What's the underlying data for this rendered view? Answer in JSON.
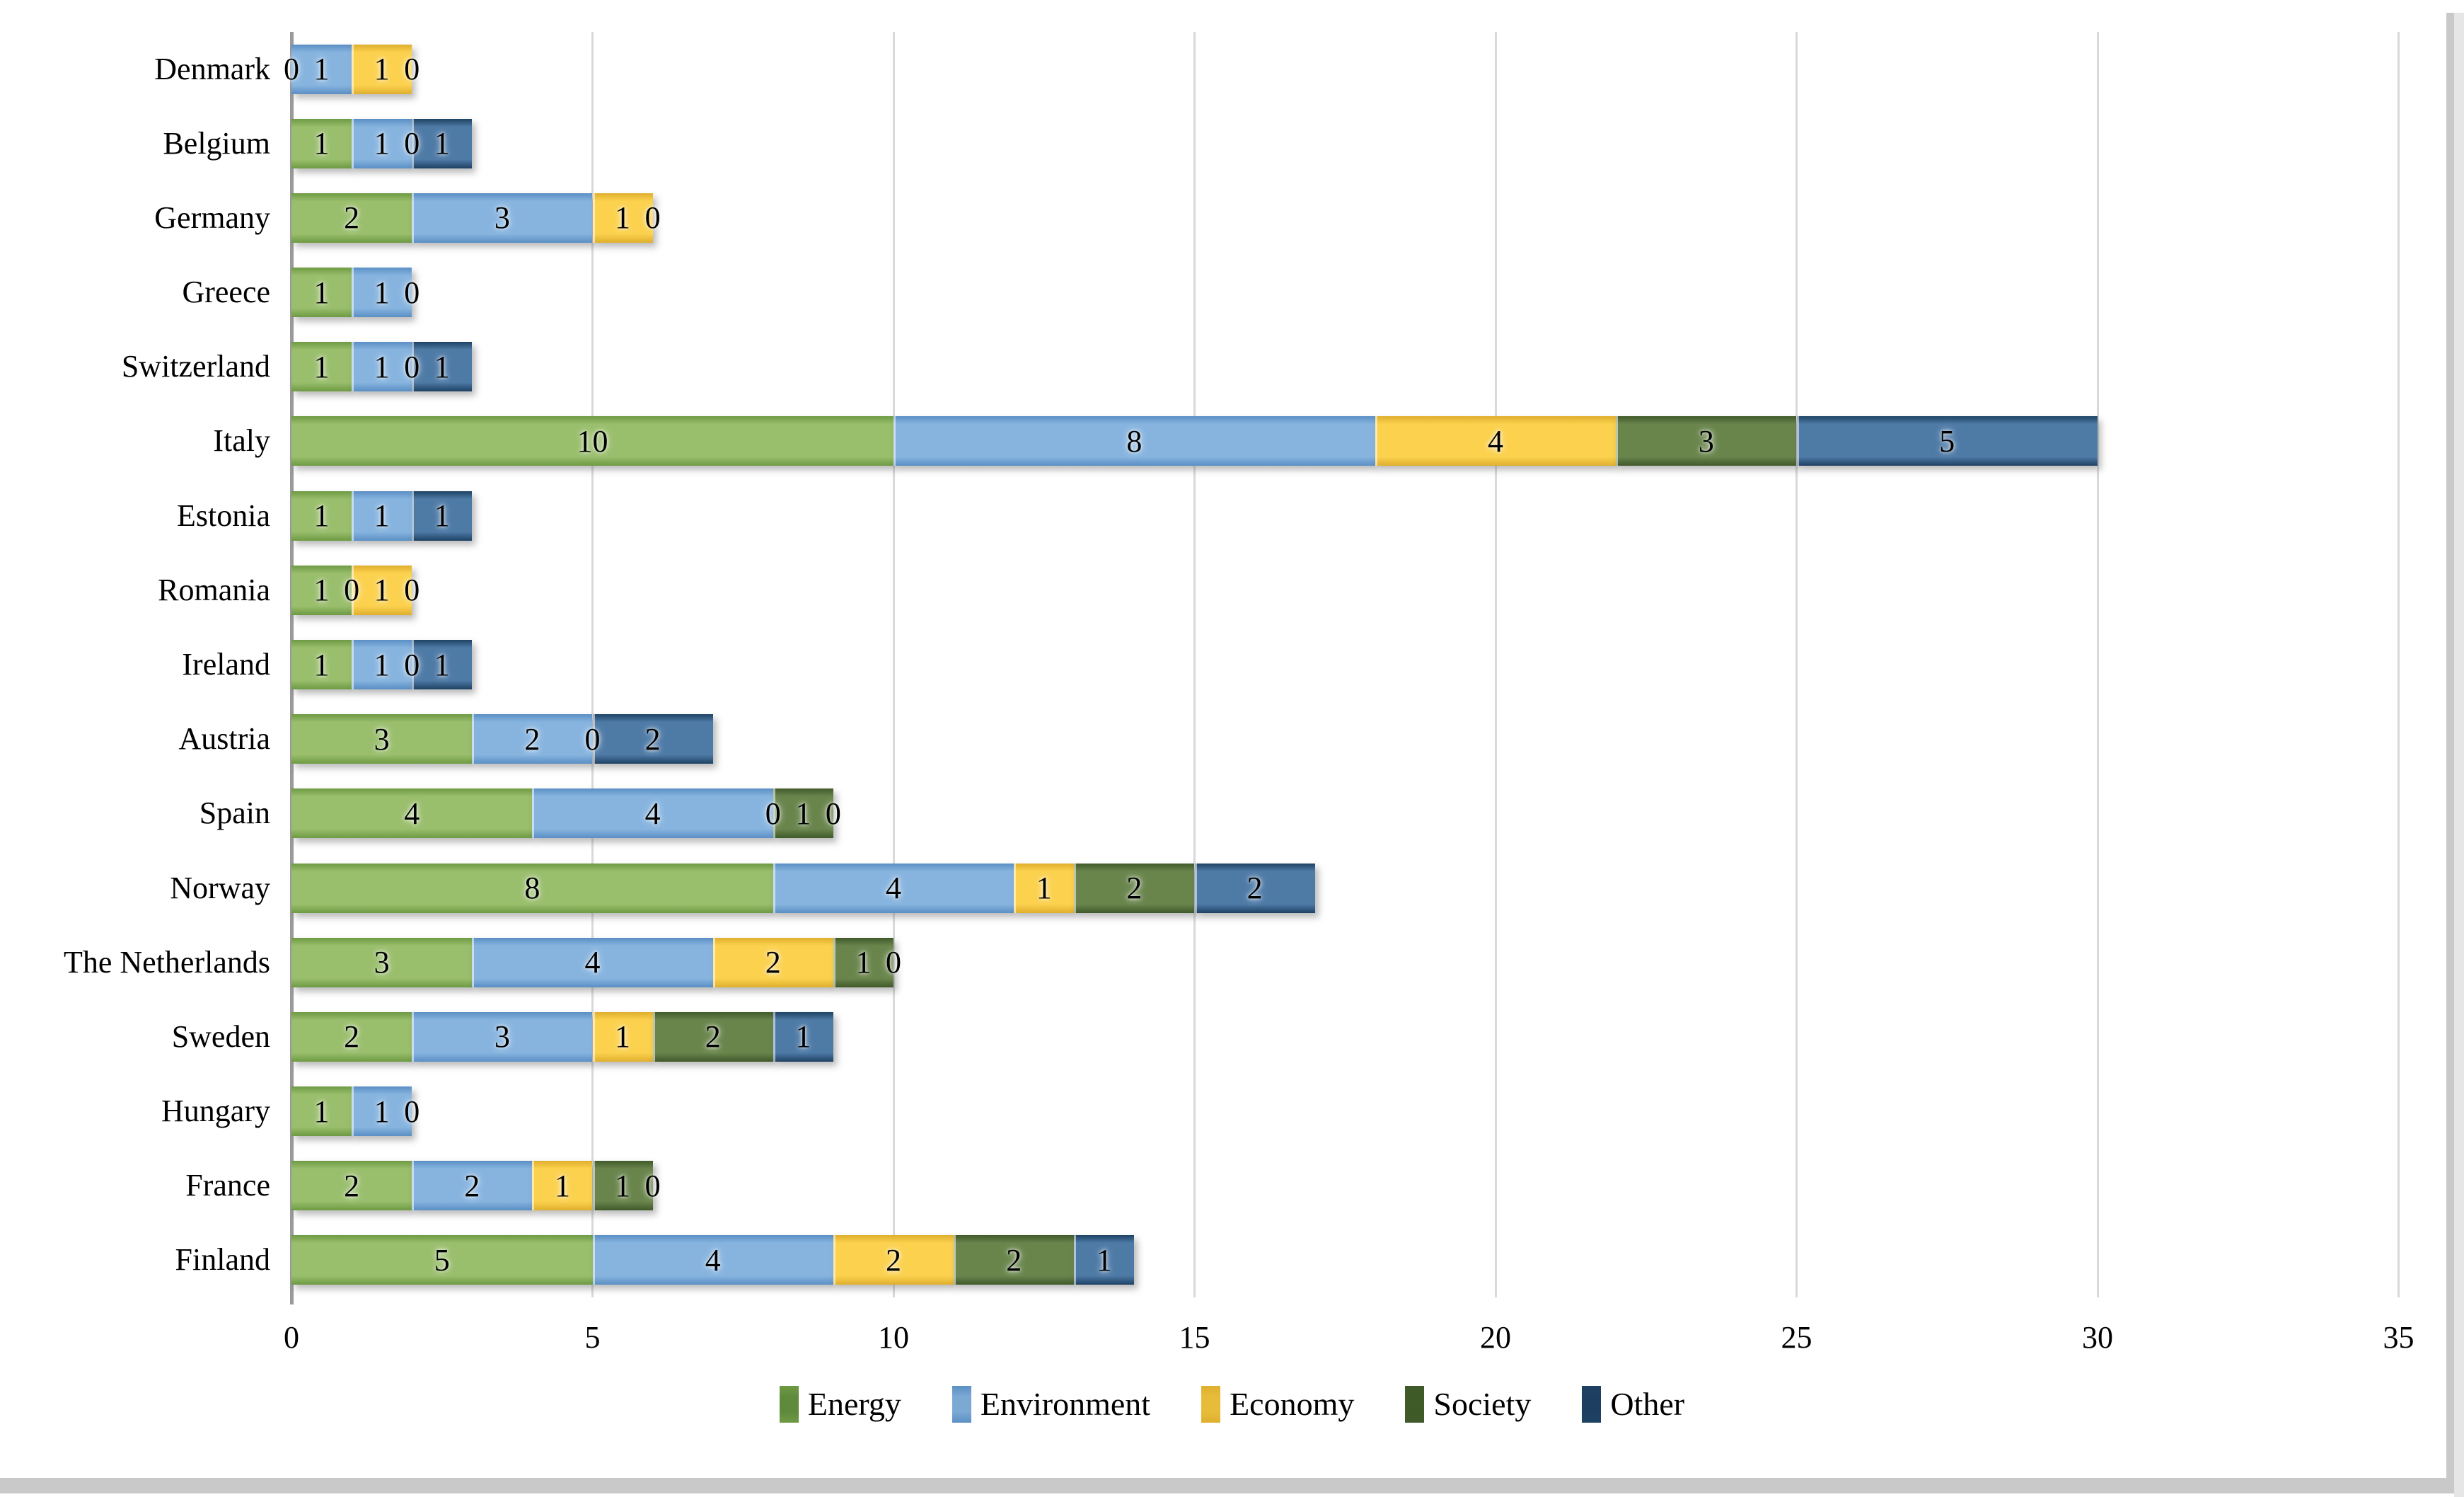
{
  "chart_data": {
    "type": "bar",
    "orientation": "horizontal",
    "stacked": true,
    "title": "",
    "xlabel": "",
    "ylabel": "",
    "xlim": [
      0,
      35
    ],
    "x_ticks": [
      "0",
      "5",
      "10",
      "15",
      "20",
      "25",
      "30",
      "35"
    ],
    "grid": true,
    "legend_position": "bottom-center",
    "categories": [
      "Denmark",
      "Belgium",
      "Germany",
      "Greece",
      "Switzerland",
      "Italy",
      "Estonia",
      "Romania",
      "Ireland",
      "Austria",
      "Spain",
      "Norway",
      "The Netherlands",
      "Sweden",
      "Hungary",
      "France",
      "Finland"
    ],
    "series": [
      {
        "name": "Energy",
        "fill": "#99BE6C",
        "edge": "#6E9A43",
        "legend_color": "#5F8A3C",
        "values": [
          0,
          1,
          2,
          1,
          1,
          10,
          1,
          1,
          1,
          3,
          4,
          8,
          3,
          2,
          1,
          2,
          5
        ]
      },
      {
        "name": "Environment",
        "fill": "#87B4DF",
        "edge": "#5A8FC4",
        "legend_color": "#7CA9D4",
        "values": [
          1,
          1,
          3,
          1,
          1,
          8,
          1,
          0,
          1,
          2,
          4,
          4,
          4,
          3,
          1,
          2,
          4
        ]
      },
      {
        "name": "Economy",
        "fill": "#FBD14E",
        "edge": "#DFAF2E",
        "legend_color": "#E8BC3B",
        "values": [
          1,
          0,
          1,
          0,
          0,
          4,
          0,
          1,
          0,
          0,
          0,
          1,
          2,
          1,
          0,
          1,
          2
        ]
      },
      {
        "name": "Society",
        "fill": "#69854C",
        "edge": "#40592A",
        "legend_color": "#3F5B27",
        "values": [
          0,
          0,
          0,
          0,
          0,
          3,
          0,
          0,
          0,
          0,
          1,
          2,
          1,
          2,
          0,
          1,
          2
        ]
      },
      {
        "name": "Other",
        "fill": "#4E7AA6",
        "edge": "#1E4264",
        "legend_color": "#1D3E60",
        "values": [
          0,
          1,
          0,
          0,
          1,
          5,
          1,
          0,
          1,
          2,
          0,
          2,
          0,
          1,
          0,
          0,
          1
        ]
      }
    ],
    "bar_labels": [
      [
        {
          "t": "0",
          "x": 0
        },
        {
          "t": "1",
          "x": 0.5
        },
        {
          "t": "1",
          "x": 1.5
        },
        {
          "t": "0",
          "x": 2
        }
      ],
      [
        {
          "t": "1",
          "x": 0.5
        },
        {
          "t": "1",
          "x": 1.5
        },
        {
          "t": "0",
          "x": 2
        },
        {
          "t": "1",
          "x": 2.5
        }
      ],
      [
        {
          "t": "2",
          "x": 1
        },
        {
          "t": "3",
          "x": 3.5
        },
        {
          "t": "1",
          "x": 5.5
        },
        {
          "t": "0",
          "x": 6
        }
      ],
      [
        {
          "t": "1",
          "x": 0.5
        },
        {
          "t": "1",
          "x": 1.5
        },
        {
          "t": "0",
          "x": 2
        }
      ],
      [
        {
          "t": "1",
          "x": 0.5
        },
        {
          "t": "1",
          "x": 1.5
        },
        {
          "t": "0",
          "x": 2
        },
        {
          "t": "1",
          "x": 2.5
        }
      ],
      [
        {
          "t": "10",
          "x": 5
        },
        {
          "t": "8",
          "x": 14
        },
        {
          "t": "4",
          "x": 20
        },
        {
          "t": "3",
          "x": 23.5
        },
        {
          "t": "5",
          "x": 27.5
        }
      ],
      [
        {
          "t": "1",
          "x": 0.5
        },
        {
          "t": "1",
          "x": 1.5
        },
        {
          "t": "1",
          "x": 2.5
        }
      ],
      [
        {
          "t": "1",
          "x": 0.5
        },
        {
          "t": "0",
          "x": 1
        },
        {
          "t": "1",
          "x": 1.5
        },
        {
          "t": "0",
          "x": 2
        }
      ],
      [
        {
          "t": "1",
          "x": 0.5
        },
        {
          "t": "1",
          "x": 1.5
        },
        {
          "t": "0",
          "x": 2
        },
        {
          "t": "1",
          "x": 2.5
        }
      ],
      [
        {
          "t": "3",
          "x": 1.5
        },
        {
          "t": "2",
          "x": 4
        },
        {
          "t": "0",
          "x": 5
        },
        {
          "t": "2",
          "x": 6
        }
      ],
      [
        {
          "t": "4",
          "x": 2
        },
        {
          "t": "4",
          "x": 6
        },
        {
          "t": "0",
          "x": 8
        },
        {
          "t": "1",
          "x": 8.5
        },
        {
          "t": "0",
          "x": 9
        }
      ],
      [
        {
          "t": "8",
          "x": 4
        },
        {
          "t": "4",
          "x": 10
        },
        {
          "t": "1",
          "x": 12.5
        },
        {
          "t": "2",
          "x": 14
        },
        {
          "t": "2",
          "x": 16
        }
      ],
      [
        {
          "t": "3",
          "x": 1.5
        },
        {
          "t": "4",
          "x": 5
        },
        {
          "t": "2",
          "x": 8
        },
        {
          "t": "1",
          "x": 9.5
        },
        {
          "t": "0",
          "x": 10
        }
      ],
      [
        {
          "t": "2",
          "x": 1
        },
        {
          "t": "3",
          "x": 3.5
        },
        {
          "t": "1",
          "x": 5.5
        },
        {
          "t": "2",
          "x": 7
        },
        {
          "t": "1",
          "x": 8.5
        }
      ],
      [
        {
          "t": "1",
          "x": 0.5
        },
        {
          "t": "1",
          "x": 1.5
        },
        {
          "t": "0",
          "x": 2
        }
      ],
      [
        {
          "t": "2",
          "x": 1
        },
        {
          "t": "2",
          "x": 3
        },
        {
          "t": "1",
          "x": 4.5
        },
        {
          "t": "1",
          "x": 5.5
        },
        {
          "t": "0",
          "x": 6
        }
      ],
      [
        {
          "t": "5",
          "x": 2.5
        },
        {
          "t": "4",
          "x": 7
        },
        {
          "t": "2",
          "x": 10
        },
        {
          "t": "2",
          "x": 12
        },
        {
          "t": "1",
          "x": 13.5
        }
      ]
    ],
    "colors": {
      "gridline": "#d9d9d9",
      "axis_line": "#9a9a9a",
      "label_text": "#000000",
      "window_edge": "#c9c9c9"
    }
  }
}
